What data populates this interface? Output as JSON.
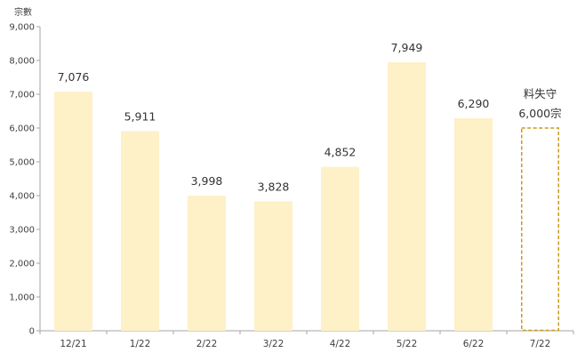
{
  "chart_data": {
    "type": "bar",
    "ylabel": "宗數",
    "categories": [
      "12/21",
      "1/22",
      "2/22",
      "3/22",
      "4/22",
      "5/22",
      "6/22",
      "7/22"
    ],
    "values": [
      7076,
      5911,
      3998,
      3828,
      4852,
      7949,
      6290,
      6000
    ],
    "data_labels": [
      "7,076",
      "5,911",
      "3,998",
      "3,828",
      "4,852",
      "7,949",
      "6,290",
      "6,000宗"
    ],
    "estimate_index": 7,
    "estimate_note": "料失守",
    "ylim": [
      0,
      9000
    ],
    "yticks": [
      0,
      1000,
      2000,
      3000,
      4000,
      5000,
      6000,
      7000,
      8000,
      9000
    ],
    "ytick_labels": [
      "0",
      "1,000",
      "2,000",
      "3,000",
      "4,000",
      "5,000",
      "6,000",
      "7,000",
      "8,000",
      "9,000"
    ],
    "grid": false,
    "legend": "none",
    "colors": {
      "bar": "#FEF0C7",
      "estimate_border": "#C89A1E",
      "axis": "#A6A6A6"
    }
  }
}
